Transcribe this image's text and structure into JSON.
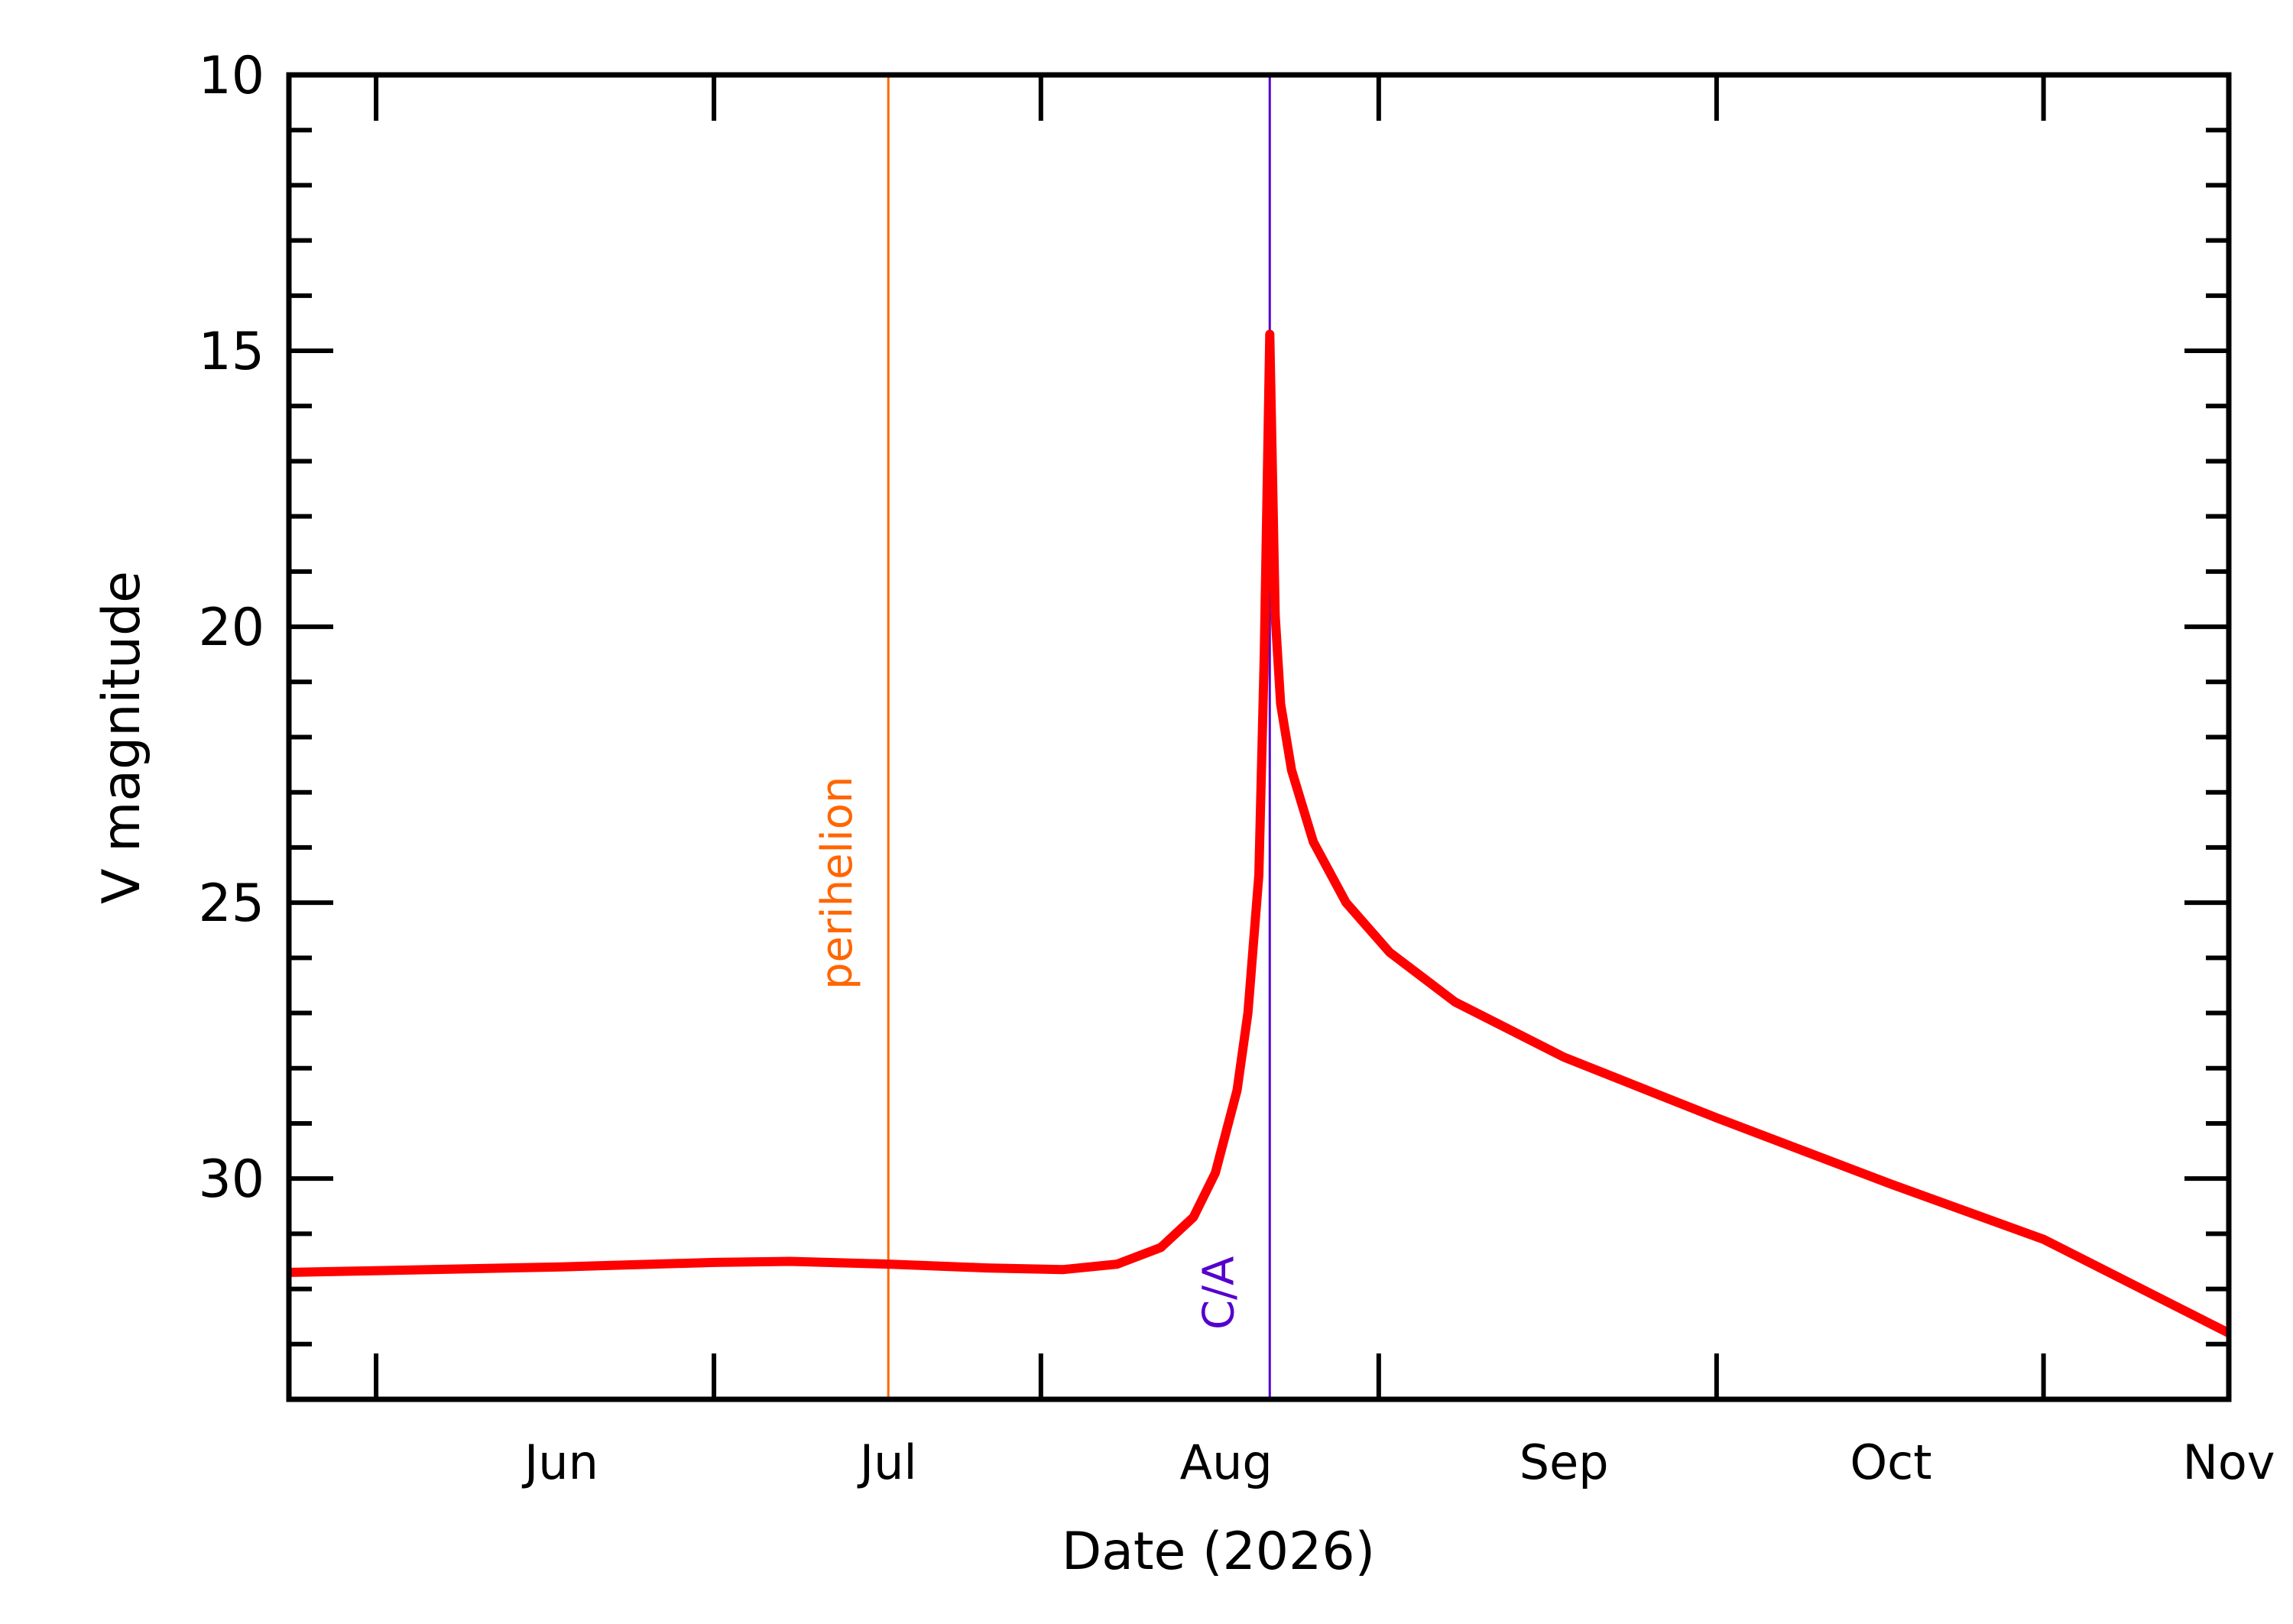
{
  "chart_data": {
    "type": "line",
    "xlabel": "Date (2026)",
    "ylabel": "V magnitude",
    "x_range": [
      "2026-05-07",
      "2026-11-01"
    ],
    "ylim": [
      10,
      34
    ],
    "y_axis_inverted": true,
    "y_ticks": [
      10,
      15,
      20,
      25,
      30
    ],
    "month_ticks": [
      {
        "label": "Jun",
        "date": "2026-06-01"
      },
      {
        "label": "Jul",
        "date": "2026-07-01"
      },
      {
        "label": "Aug",
        "date": "2026-08-01"
      },
      {
        "label": "Sep",
        "date": "2026-09-01"
      },
      {
        "label": "Oct",
        "date": "2026-10-01"
      },
      {
        "label": "Nov",
        "date": "2026-11-01"
      }
    ],
    "events": [
      {
        "label": "perihelion",
        "date": "2026-07-01",
        "color": "#ff6600"
      },
      {
        "label": "C/A",
        "date": "2026-08-05",
        "color": "#5500cc"
      }
    ],
    "series": [
      {
        "color": "#ff0000",
        "points": [
          [
            "2026-05-07",
            31.7
          ],
          [
            "2026-05-20",
            31.65
          ],
          [
            "2026-06-01",
            31.6
          ],
          [
            "2026-06-15",
            31.52
          ],
          [
            "2026-06-22",
            31.5
          ],
          [
            "2026-07-01",
            31.55
          ],
          [
            "2026-07-10",
            31.62
          ],
          [
            "2026-07-17",
            31.65
          ],
          [
            "2026-07-22",
            31.55
          ],
          [
            "2026-07-26",
            31.25
          ],
          [
            "2026-07-29",
            30.7
          ],
          [
            "2026-07-31",
            29.9
          ],
          [
            "2026-08-02",
            28.4
          ],
          [
            "2026-08-03",
            27.0
          ],
          [
            "2026-08-04",
            24.5
          ],
          [
            "2026-08-04T12:00",
            20.5
          ],
          [
            "2026-08-05",
            14.7
          ],
          [
            "2026-08-05T12:00",
            19.8
          ],
          [
            "2026-08-06",
            21.4
          ],
          [
            "2026-08-07",
            22.6
          ],
          [
            "2026-08-09",
            23.9
          ],
          [
            "2026-08-12",
            25.0
          ],
          [
            "2026-08-16",
            25.9
          ],
          [
            "2026-08-22",
            26.8
          ],
          [
            "2026-09-01",
            27.8
          ],
          [
            "2026-09-15",
            28.9
          ],
          [
            "2026-10-01",
            30.1
          ],
          [
            "2026-10-15",
            31.1
          ],
          [
            "2026-11-01",
            32.8
          ]
        ]
      }
    ]
  }
}
